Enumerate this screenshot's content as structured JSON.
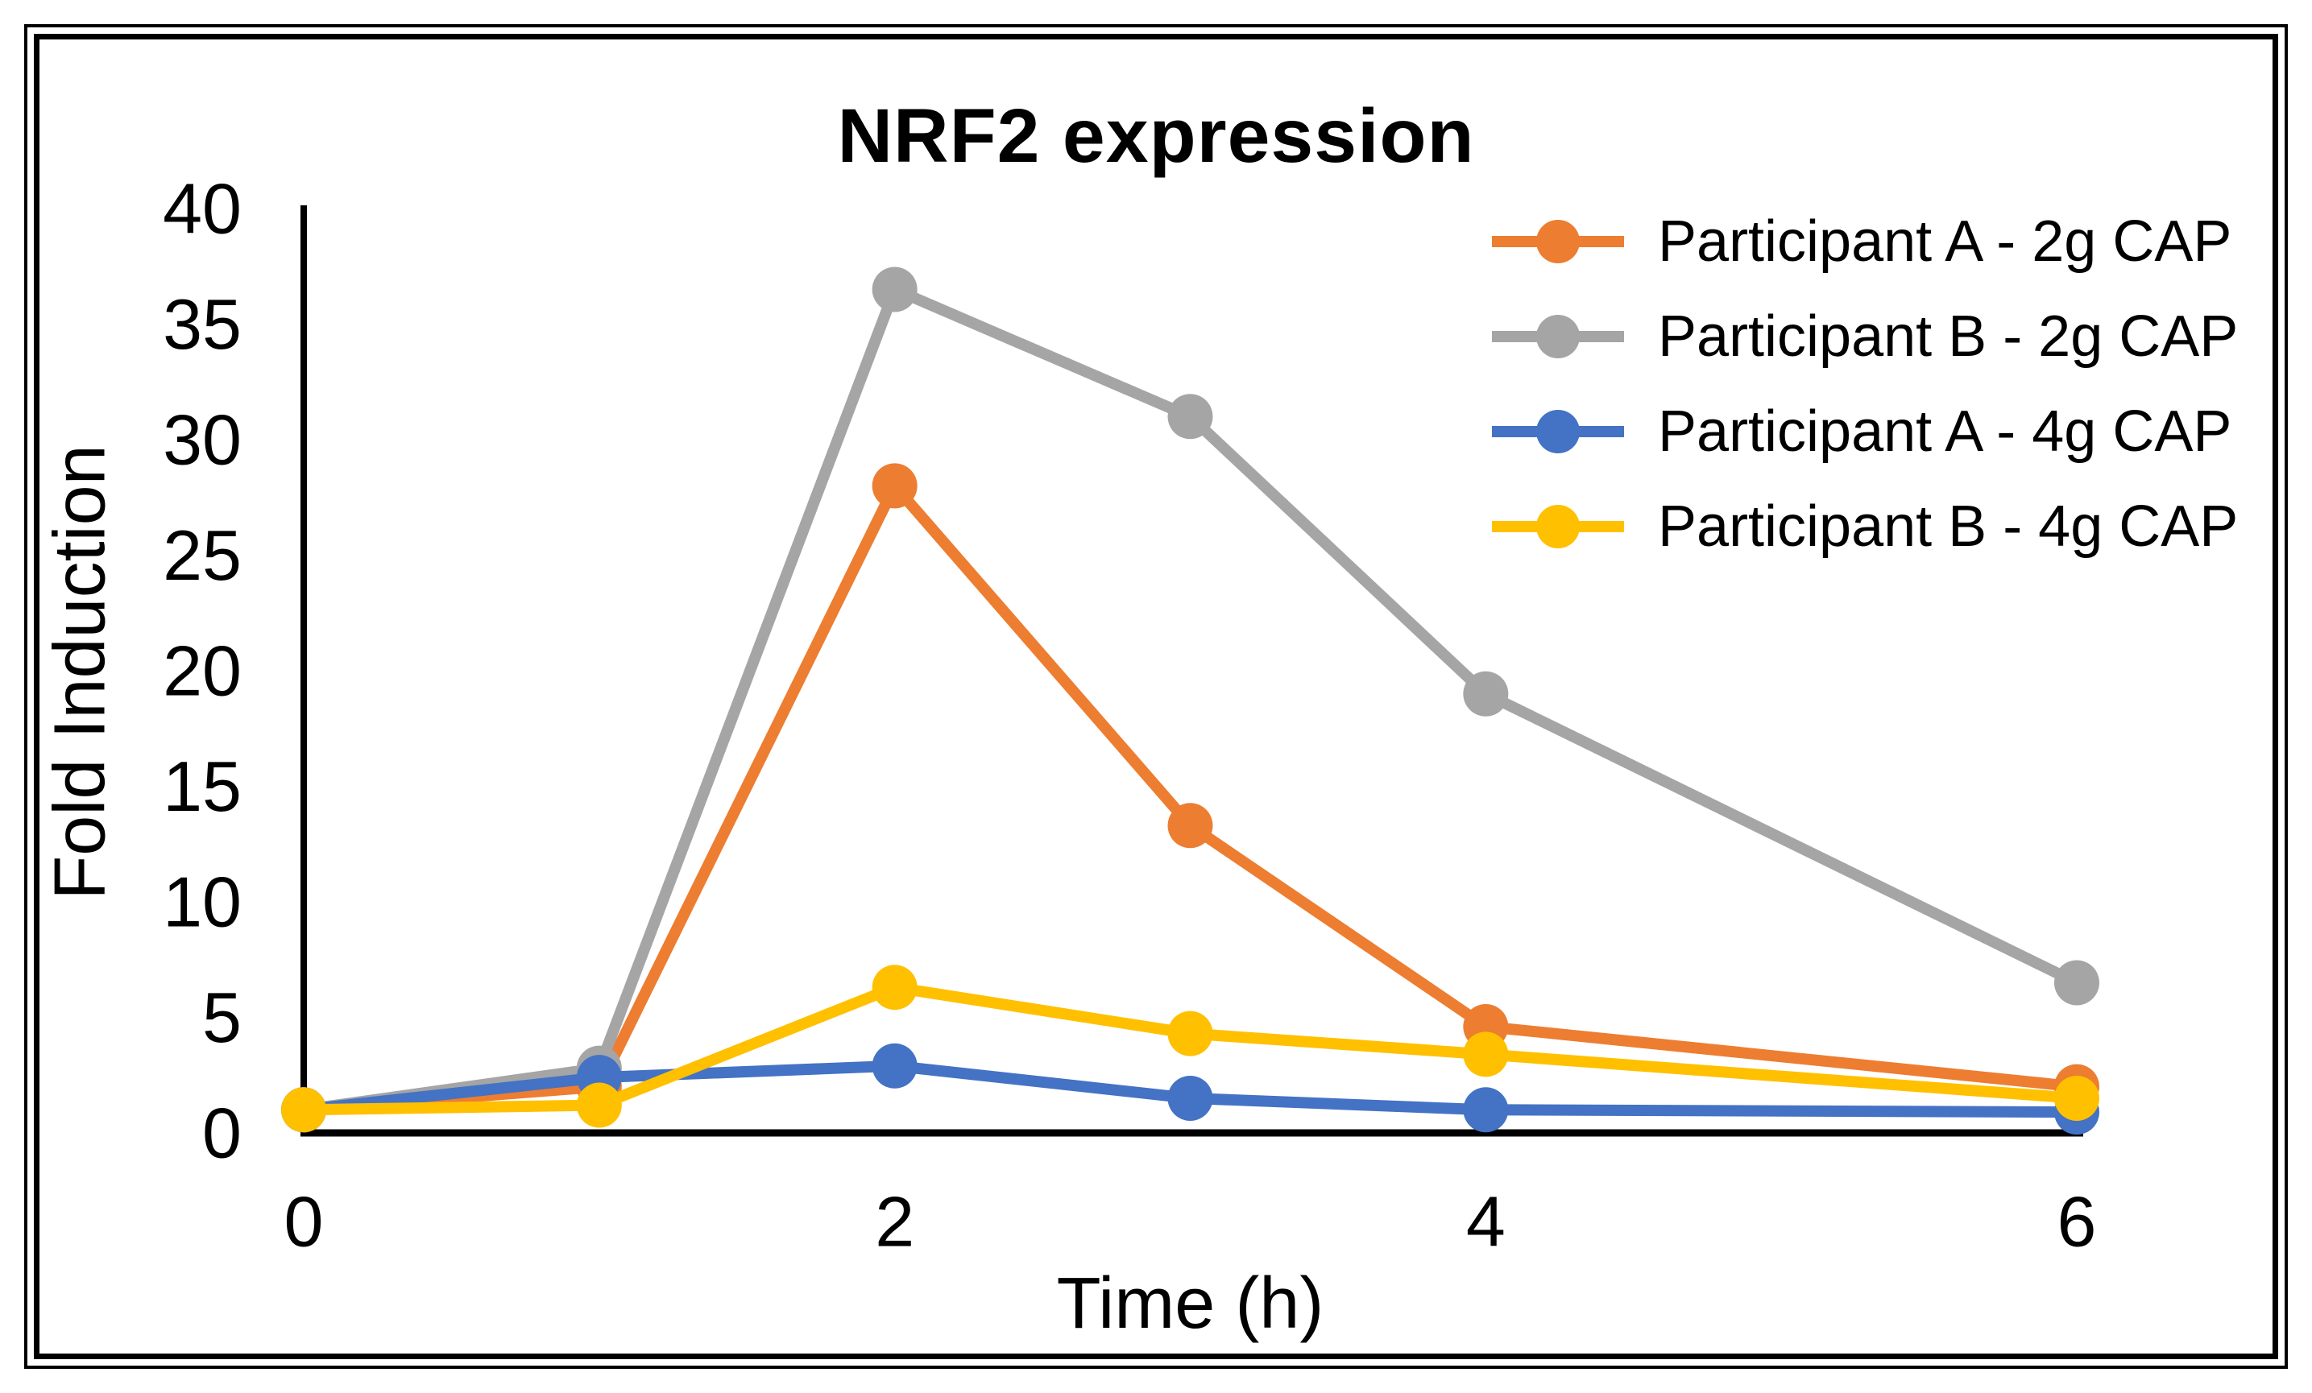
{
  "chart_data": {
    "type": "line",
    "title": "NRF2 expression",
    "xlabel": "Time (h)",
    "ylabel": "Fold Induction",
    "x": [
      0,
      1,
      2,
      3,
      4,
      6
    ],
    "x_tick_labels": [
      0,
      2,
      4,
      6
    ],
    "y_tick_labels": [
      0,
      5,
      10,
      15,
      20,
      25,
      30,
      35,
      40
    ],
    "xlim": [
      0,
      6
    ],
    "ylim": [
      0,
      40
    ],
    "grid": false,
    "legend_position": "upper-right-inside",
    "marker": "circle",
    "series": [
      {
        "name": "Participant A - 2g CAP",
        "color": "#ED7D31",
        "values": [
          1,
          2,
          28,
          13.3,
          4.6,
          2
        ]
      },
      {
        "name": "Participant B - 2g CAP",
        "color": "#A5A5A5",
        "values": [
          1,
          2.8,
          36.5,
          31,
          19,
          6.5
        ]
      },
      {
        "name": "Participant A - 4g CAP",
        "color": "#4472C4",
        "values": [
          1,
          2.4,
          2.9,
          1.5,
          1,
          0.9
        ]
      },
      {
        "name": "Participant B - 4g CAP",
        "color": "#FFC000",
        "values": [
          1,
          1.2,
          6.3,
          4.3,
          3.4,
          1.5
        ]
      }
    ],
    "axis_color": "#000000",
    "text_color": "#000000"
  }
}
